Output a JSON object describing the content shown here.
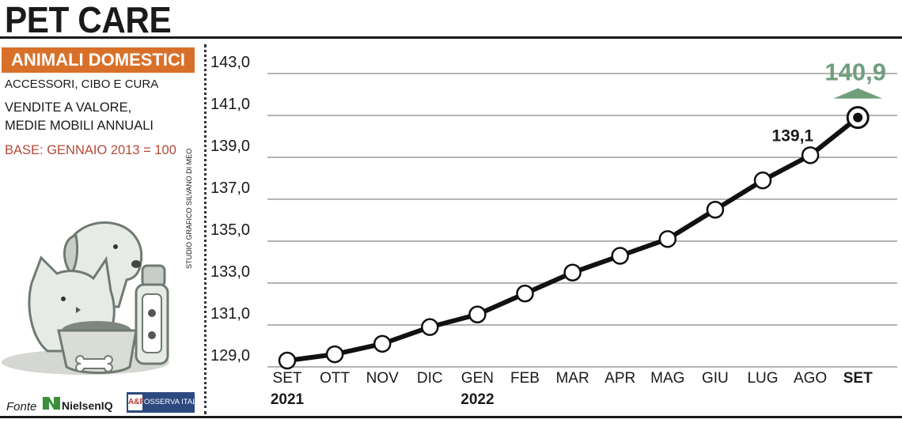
{
  "page": {
    "title": "PET CARE",
    "category": "ANIMALI DOMESTICI",
    "subtitle": "ACCESSORI, CIBO E CURA",
    "description_line1": "VENDITE A VALORE,",
    "description_line2": "MEDIE MOBILI ANNUALI",
    "base": "BASE: GENNAIO 2013 = 100",
    "credit": "STUDIO GRAFICO SILVANO DI MEO",
    "source_label": "Fonte",
    "source_logo1": "NielsenIQ",
    "source_logo2_mark": "A&F",
    "source_logo2_text": "OSSERVA ITALIA"
  },
  "colors": {
    "banner": "#d9702a",
    "base_text": "#b24a3a",
    "highlight": "#6f9e7b",
    "line": "#111111"
  },
  "chart_data": {
    "type": "line",
    "categories": [
      "SET",
      "OTT",
      "NOV",
      "DIC",
      "GEN",
      "FEB",
      "MAR",
      "APR",
      "MAG",
      "GIU",
      "LUG",
      "AGO",
      "SET"
    ],
    "year_labels": [
      {
        "index": 0,
        "label": "2021"
      },
      {
        "index": 4,
        "label": "2022"
      }
    ],
    "series": [
      {
        "values": [
          129.3,
          129.6,
          130.1,
          130.9,
          131.5,
          132.5,
          133.5,
          134.3,
          135.1,
          136.5,
          137.9,
          139.1,
          140.9
        ]
      }
    ],
    "y_ticks": [
      "143,0",
      "141,0",
      "139,0",
      "137,0",
      "135,0",
      "133,0",
      "131,0",
      "129,0"
    ],
    "y_tick_values": [
      143,
      141,
      139,
      137,
      135,
      133,
      131,
      129
    ],
    "ylim": [
      129,
      143
    ],
    "grid": "horizontal",
    "annotations": [
      {
        "index": 11,
        "label": "139,1"
      },
      {
        "index": 12,
        "label": "140,9",
        "highlight": true
      }
    ],
    "bold_category_index": 12
  }
}
